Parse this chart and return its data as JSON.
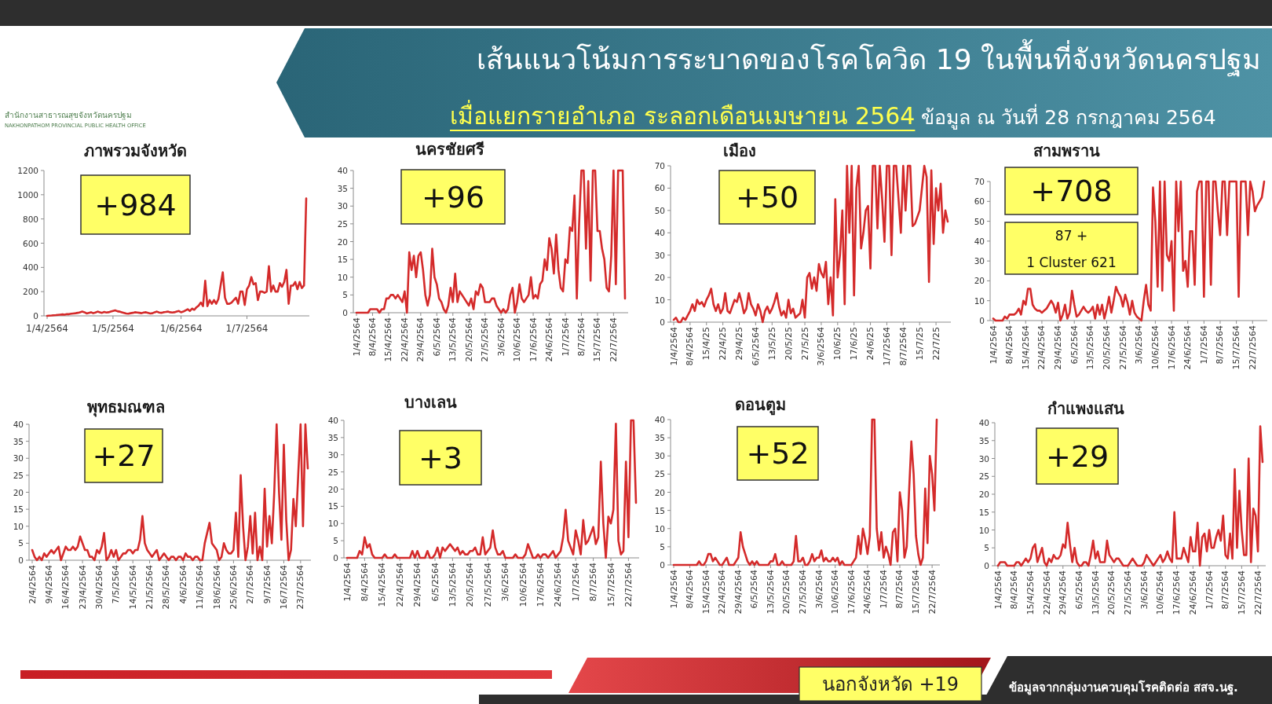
{
  "chart_data": [
    {
      "type": "other",
      "title": "เส้นแนวโน้มการระบาดของโรคโควิด 19 ในพื้นที่จังหวัดนครปฐม",
      "subtitle": "เมื่อแยกรายอำเภอ ระลอกเดือนเมษายน 2564",
      "annotations": [
        "ข้อมูล ณ วันที่ 28 กรกฎาคม 2564",
        "นอกจังหวัด +19",
        "ข้อมูลจากกลุ่มงานควบคุมโรคติดต่อ สสจ.นฐ.",
        "สำนักงานสาธารณสุขจังหวัดนครปฐม",
        "NAKHONPATHOM PROVINCIAL PUBLIC HEALTH OFFICE"
      ]
    },
    {
      "type": "line",
      "title": "ภาพรวมจังหวัด",
      "color": "#d42a2a",
      "ylim": [
        0,
        1200
      ],
      "yticks": [
        0,
        200,
        400,
        600,
        800,
        1000,
        1200
      ],
      "annotations": [
        "+984"
      ],
      "categories": [
        "1/4/2564",
        null,
        null,
        null,
        null,
        null,
        null,
        null,
        null,
        null,
        null,
        null,
        null,
        null,
        null,
        null,
        null,
        null,
        null,
        null,
        null,
        null,
        null,
        null,
        null,
        null,
        null,
        null,
        null,
        null,
        "1/5/2564",
        null,
        null,
        null,
        null,
        null,
        null,
        null,
        null,
        null,
        null,
        null,
        null,
        null,
        null,
        null,
        null,
        null,
        null,
        null,
        null,
        null,
        null,
        null,
        null,
        null,
        null,
        null,
        null,
        null,
        null,
        "1/6/2564",
        null,
        null,
        null,
        null,
        null,
        null,
        null,
        null,
        null,
        null,
        null,
        null,
        null,
        null,
        null,
        null,
        null,
        null,
        null,
        null,
        null,
        null,
        null,
        null,
        null,
        null,
        null,
        null,
        null,
        "1/7/2564",
        null,
        null,
        null,
        null,
        null,
        null,
        null,
        null,
        null,
        null,
        null,
        null,
        null,
        null,
        null,
        null,
        null,
        null,
        null,
        null,
        null,
        null,
        null,
        null,
        null,
        null,
        null
      ],
      "values": [
        0,
        2,
        3,
        5,
        6,
        8,
        10,
        12,
        10,
        15,
        14,
        18,
        20,
        22,
        25,
        30,
        35,
        30,
        20,
        25,
        30,
        22,
        28,
        35,
        30,
        25,
        32,
        28,
        30,
        35,
        40,
        45,
        38,
        35,
        30,
        25,
        20,
        18,
        22,
        25,
        30,
        28,
        25,
        22,
        28,
        30,
        25,
        20,
        22,
        30,
        35,
        28,
        25,
        30,
        32,
        35,
        30,
        28,
        30,
        35,
        40,
        30,
        35,
        45,
        55,
        40,
        60,
        50,
        70,
        85,
        110,
        80,
        290,
        80,
        130,
        100,
        130,
        100,
        140,
        250,
        360,
        150,
        100,
        100,
        110,
        130,
        150,
        100,
        200,
        200,
        90,
        220,
        250,
        320,
        260,
        270,
        130,
        200,
        200,
        190,
        200,
        410,
        200,
        250,
        200,
        200,
        270,
        240,
        280,
        380,
        100,
        250,
        250,
        280,
        220,
        280,
        230,
        250,
        970
      ]
    },
    {
      "type": "line",
      "title": "นครชัยศรี",
      "color": "#d42a2a",
      "ylim": [
        0,
        40
      ],
      "yticks": [
        0,
        5,
        10,
        15,
        20,
        25,
        30,
        35,
        40
      ],
      "annotations": [
        "+96"
      ],
      "categories": [
        "1/4/2564",
        null,
        null,
        null,
        null,
        null,
        null,
        "8/4/2564",
        null,
        null,
        null,
        null,
        null,
        null,
        "15/4/2564",
        null,
        null,
        null,
        null,
        null,
        null,
        "22/4/2564",
        null,
        null,
        null,
        null,
        null,
        null,
        "29/4/2564",
        null,
        null,
        null,
        null,
        null,
        null,
        "6/5/2564",
        null,
        null,
        null,
        null,
        null,
        null,
        "13/5/2564",
        null,
        null,
        null,
        null,
        null,
        null,
        "20/5/2564",
        null,
        null,
        null,
        null,
        null,
        null,
        "27/5/2564",
        null,
        null,
        null,
        null,
        null,
        null,
        "3/6/2564",
        null,
        null,
        null,
        null,
        null,
        null,
        "10/6/2564",
        null,
        null,
        null,
        null,
        null,
        null,
        "17/6/2564",
        null,
        null,
        null,
        null,
        null,
        null,
        "24/6/2564",
        null,
        null,
        null,
        null,
        null,
        null,
        "1/7/2564",
        null,
        null,
        null,
        null,
        null,
        null,
        "8/7/2564",
        null,
        null,
        null,
        null,
        null,
        null,
        "15/7/2564",
        null,
        null,
        null,
        null,
        null,
        null,
        "22/7/2564",
        null,
        null,
        null,
        null,
        null
      ],
      "values": [
        0,
        0,
        0,
        0,
        0,
        0,
        1,
        1,
        1,
        1,
        0,
        1,
        1,
        4,
        4,
        5,
        5,
        4,
        5,
        4,
        3,
        6,
        0,
        17,
        12,
        16,
        10,
        16,
        17,
        12,
        5,
        2,
        5,
        18,
        10,
        8,
        4,
        3,
        1,
        0,
        2,
        7,
        3,
        11,
        3,
        6,
        5,
        4,
        3,
        2,
        4,
        1,
        6,
        5,
        8,
        7,
        3,
        3,
        3,
        4,
        4,
        2,
        1,
        0,
        1,
        0,
        1,
        5,
        7,
        0,
        3,
        8,
        4,
        3,
        4,
        5,
        10,
        4,
        5,
        4,
        8,
        9,
        15,
        12,
        21,
        18,
        11,
        22,
        12,
        7,
        6,
        15,
        14,
        24,
        23,
        33,
        4,
        25,
        40,
        40,
        18,
        37,
        9,
        40,
        40,
        23,
        23,
        18,
        15,
        7,
        6,
        16,
        40,
        8,
        40,
        40,
        40,
        4
      ]
    },
    {
      "type": "line",
      "title": "เมือง",
      "color": "#d42a2a",
      "ylim": [
        0,
        70
      ],
      "yticks": [
        0,
        10,
        20,
        30,
        40,
        50,
        60,
        70
      ],
      "annotations": [
        "+50"
      ],
      "categories": [
        "1/4/2564",
        null,
        null,
        null,
        null,
        null,
        null,
        "8/4/2564",
        null,
        null,
        null,
        null,
        null,
        null,
        "15/4/25",
        null,
        null,
        null,
        null,
        null,
        null,
        "22/4/25",
        null,
        null,
        null,
        null,
        null,
        null,
        "29/4/25",
        null,
        null,
        null,
        null,
        null,
        null,
        "6/5/2564",
        null,
        null,
        null,
        null,
        null,
        null,
        "13/5/25",
        null,
        null,
        null,
        null,
        null,
        null,
        "20/5/25",
        null,
        null,
        null,
        null,
        null,
        null,
        "27/5/25",
        null,
        null,
        null,
        null,
        null,
        null,
        "3/6/2564",
        null,
        null,
        null,
        null,
        null,
        null,
        "10/6/25",
        null,
        null,
        null,
        null,
        null,
        null,
        "17/6/25",
        null,
        null,
        null,
        null,
        null,
        null,
        "24/6/25",
        null,
        null,
        null,
        null,
        null,
        null,
        "1/7/2564",
        null,
        null,
        null,
        null,
        null,
        null,
        "8/7/2564",
        null,
        null,
        null,
        null,
        null,
        null,
        "15/7/25",
        null,
        null,
        null,
        null,
        null,
        null,
        "22/7/25",
        null,
        null,
        null,
        null,
        null
      ],
      "values": [
        1,
        2,
        0,
        0,
        2,
        1,
        3,
        5,
        8,
        5,
        10,
        8,
        9,
        7,
        10,
        12,
        15,
        8,
        5,
        8,
        4,
        6,
        13,
        5,
        4,
        7,
        10,
        9,
        13,
        9,
        4,
        6,
        13,
        8,
        6,
        3,
        8,
        5,
        0,
        5,
        7,
        4,
        6,
        9,
        13,
        7,
        3,
        5,
        2,
        10,
        4,
        6,
        2,
        3,
        4,
        10,
        2,
        20,
        22,
        15,
        20,
        14,
        26,
        22,
        20,
        27,
        8,
        20,
        3,
        55,
        20,
        30,
        50,
        8,
        70,
        40,
        70,
        12,
        60,
        70,
        33,
        40,
        50,
        52,
        24,
        70,
        70,
        42,
        70,
        55,
        36,
        70,
        70,
        30,
        70,
        70,
        55,
        40,
        70,
        50,
        70,
        70,
        43,
        44,
        47,
        50,
        60,
        70,
        65,
        18,
        68,
        35,
        60,
        50,
        62,
        40,
        50,
        45
      ]
    },
    {
      "type": "line",
      "title": "สามพราน",
      "color": "#d42a2a",
      "ylim": [
        0,
        70
      ],
      "yticks": [
        0,
        10,
        20,
        30,
        40,
        50,
        60,
        70
      ],
      "annotations": [
        "+708",
        "87 +\n1 Cluster 621"
      ],
      "categories": [
        "1/4/2564",
        null,
        null,
        null,
        null,
        null,
        null,
        "8/4/2564",
        null,
        null,
        null,
        null,
        null,
        null,
        "15/4/2564",
        null,
        null,
        null,
        null,
        null,
        null,
        "22/4/2564",
        null,
        null,
        null,
        null,
        null,
        null,
        "29/4/2564",
        null,
        null,
        null,
        null,
        null,
        null,
        "6/5/2564",
        null,
        null,
        null,
        null,
        null,
        null,
        "13/5/2564",
        null,
        null,
        null,
        null,
        null,
        null,
        "20/5/2564",
        null,
        null,
        null,
        null,
        null,
        null,
        "27/5/2564",
        null,
        null,
        null,
        null,
        null,
        null,
        "3/6/2564",
        null,
        null,
        null,
        null,
        null,
        null,
        "10/6/2564",
        null,
        null,
        null,
        null,
        null,
        null,
        "17/6/2564",
        null,
        null,
        null,
        null,
        null,
        null,
        "24/6/2564",
        null,
        null,
        null,
        null,
        null,
        null,
        "1/7/2564",
        null,
        null,
        null,
        null,
        null,
        null,
        "8/7/2564",
        null,
        null,
        null,
        null,
        null,
        null,
        "15/7/2564",
        null,
        null,
        null,
        null,
        null,
        null,
        "22/7/2564",
        null,
        null,
        null,
        null,
        null
      ],
      "values": [
        1,
        0,
        0,
        0,
        0,
        2,
        1,
        3,
        3,
        3,
        4,
        6,
        3,
        10,
        8,
        16,
        16,
        8,
        6,
        5,
        5,
        4,
        5,
        6,
        8,
        10,
        8,
        4,
        9,
        0,
        3,
        8,
        1,
        4,
        15,
        8,
        2,
        3,
        5,
        7,
        5,
        4,
        5,
        7,
        1,
        8,
        3,
        8,
        1,
        6,
        12,
        4,
        10,
        17,
        14,
        12,
        7,
        13,
        9,
        3,
        10,
        4,
        2,
        1,
        0,
        10,
        18,
        8,
        5,
        67,
        50,
        17,
        70,
        15,
        70,
        33,
        30,
        40,
        5,
        70,
        45,
        70,
        25,
        30,
        17,
        45,
        45,
        18,
        65,
        70,
        70,
        12,
        70,
        70,
        18,
        70,
        70,
        55,
        43,
        70,
        70,
        43,
        70,
        70,
        70,
        70,
        12,
        70,
        70,
        70,
        43,
        70,
        65,
        55,
        58,
        60,
        62,
        70
      ]
    },
    {
      "type": "line",
      "title": "พุทธมณฑล",
      "color": "#d42a2a",
      "ylim": [
        0,
        40
      ],
      "yticks": [
        0,
        5,
        10,
        15,
        20,
        25,
        30,
        35,
        40
      ],
      "annotations": [
        "+27"
      ],
      "categories": [
        "2/4/2564",
        null,
        null,
        null,
        null,
        null,
        null,
        "9/4/2564",
        null,
        null,
        null,
        null,
        null,
        null,
        "16/4/2564",
        null,
        null,
        null,
        null,
        null,
        null,
        "23/4/2564",
        null,
        null,
        null,
        null,
        null,
        null,
        "30/4/2564",
        null,
        null,
        null,
        null,
        null,
        null,
        "7/5/2564",
        null,
        null,
        null,
        null,
        null,
        null,
        "14/5/2564",
        null,
        null,
        null,
        null,
        null,
        null,
        "21/5/2564",
        null,
        null,
        null,
        null,
        null,
        null,
        "28/5/2564",
        null,
        null,
        null,
        null,
        null,
        null,
        "4/6/2564",
        null,
        null,
        null,
        null,
        null,
        null,
        "11/6/2564",
        null,
        null,
        null,
        null,
        null,
        null,
        "18/6/2564",
        null,
        null,
        null,
        null,
        null,
        null,
        "25/6/2564",
        null,
        null,
        null,
        null,
        null,
        null,
        "2/7/2564",
        null,
        null,
        null,
        null,
        null,
        null,
        "9/7/2564",
        null,
        null,
        null,
        null,
        null,
        null,
        "16/7/2564",
        null,
        null,
        null,
        null,
        null,
        null,
        "23/7/2564",
        null,
        null,
        null
      ],
      "values": [
        3,
        1,
        0,
        1,
        0,
        2,
        1,
        2,
        3,
        2,
        3,
        4,
        0,
        2,
        4,
        3,
        3,
        4,
        3,
        4,
        7,
        5,
        3,
        3,
        1,
        1,
        0,
        3,
        2,
        4,
        8,
        0,
        1,
        3,
        1,
        3,
        0,
        1,
        2,
        2,
        3,
        3,
        2,
        3,
        3,
        6,
        13,
        5,
        3,
        2,
        1,
        2,
        3,
        0,
        1,
        2,
        1,
        0,
        1,
        1,
        0,
        1,
        1,
        0,
        2,
        1,
        1,
        0,
        1,
        1,
        0,
        0,
        5,
        8,
        11,
        5,
        4,
        3,
        0,
        1,
        5,
        3,
        2,
        2,
        3,
        14,
        1,
        25,
        10,
        0,
        4,
        13,
        2,
        14,
        0,
        4,
        0,
        21,
        4,
        13,
        5,
        20,
        40,
        20,
        6,
        34,
        12,
        0,
        3,
        18,
        10,
        25,
        40,
        10,
        40,
        27
      ]
    },
    {
      "type": "line",
      "title": "บางเลน",
      "color": "#d42a2a",
      "ylim": [
        0,
        40
      ],
      "yticks": [
        0,
        5,
        10,
        15,
        20,
        25,
        30,
        35,
        40
      ],
      "annotations": [
        "+3"
      ],
      "categories": [
        "1/4/2564",
        null,
        null,
        null,
        null,
        null,
        null,
        "8/4/2564",
        null,
        null,
        null,
        null,
        null,
        null,
        "15/4/2564",
        null,
        null,
        null,
        null,
        null,
        null,
        "22/4/2564",
        null,
        null,
        null,
        null,
        null,
        null,
        "29/4/2564",
        null,
        null,
        null,
        null,
        null,
        null,
        "6/5/2564",
        null,
        null,
        null,
        null,
        null,
        null,
        "13/5/2564",
        null,
        null,
        null,
        null,
        null,
        null,
        "20/5/2564",
        null,
        null,
        null,
        null,
        null,
        null,
        "27/5/2564",
        null,
        null,
        null,
        null,
        null,
        null,
        "3/6/2564",
        null,
        null,
        null,
        null,
        null,
        null,
        "10/6/2564",
        null,
        null,
        null,
        null,
        null,
        null,
        "17/6/2564",
        null,
        null,
        null,
        null,
        null,
        null,
        "24/6/2564",
        null,
        null,
        null,
        null,
        null,
        null,
        "1/7/2564",
        null,
        null,
        null,
        null,
        null,
        null,
        "8/7/2564",
        null,
        null,
        null,
        null,
        null,
        null,
        "15/7/2564",
        null,
        null,
        null,
        null,
        null,
        null,
        "22/7/2564",
        null,
        null,
        null
      ],
      "values": [
        0,
        0,
        0,
        0,
        0,
        2,
        1,
        6,
        3,
        4,
        1,
        0,
        0,
        0,
        0,
        1,
        0,
        0,
        0,
        1,
        0,
        0,
        0,
        0,
        0,
        0,
        2,
        0,
        2,
        0,
        0,
        0,
        2,
        0,
        0,
        1,
        3,
        0,
        3,
        2,
        3,
        4,
        3,
        2,
        3,
        1,
        2,
        1,
        1,
        2,
        2,
        3,
        1,
        1,
        6,
        1,
        2,
        3,
        8,
        3,
        1,
        1,
        2,
        0,
        0,
        0,
        0,
        1,
        0,
        0,
        0,
        1,
        4,
        2,
        0,
        0,
        1,
        0,
        1,
        1,
        0,
        1,
        2,
        0,
        1,
        2,
        6,
        14,
        5,
        3,
        1,
        8,
        5,
        1,
        11,
        4,
        5,
        7,
        9,
        4,
        6,
        28,
        10,
        0,
        12,
        10,
        14,
        39,
        5,
        1,
        2,
        28,
        6,
        40,
        40,
        16
      ]
    },
    {
      "type": "line",
      "title": "ดอนตูม",
      "color": "#d42a2a",
      "ylim": [
        0,
        40
      ],
      "yticks": [
        0,
        5,
        10,
        15,
        20,
        25,
        30,
        35,
        40
      ],
      "annotations": [
        "+52"
      ],
      "categories": [
        "1/4/2564",
        null,
        null,
        null,
        null,
        null,
        null,
        "8/4/2564",
        null,
        null,
        null,
        null,
        null,
        null,
        "15/4/2564",
        null,
        null,
        null,
        null,
        null,
        null,
        "22/4/2564",
        null,
        null,
        null,
        null,
        null,
        null,
        "29/4/2564",
        null,
        null,
        null,
        null,
        null,
        null,
        "6/5/2564",
        null,
        null,
        null,
        null,
        null,
        null,
        "13/5/2564",
        null,
        null,
        null,
        null,
        null,
        null,
        "20/5/2564",
        null,
        null,
        null,
        null,
        null,
        null,
        "27/5/2564",
        null,
        null,
        null,
        null,
        null,
        null,
        "3/6/2564",
        null,
        null,
        null,
        null,
        null,
        null,
        "10/6/2564",
        null,
        null,
        null,
        null,
        null,
        null,
        "17/6/2564",
        null,
        null,
        null,
        null,
        null,
        null,
        "24/6/2564",
        null,
        null,
        null,
        null,
        null,
        null,
        "1/7/2564",
        null,
        null,
        null,
        null,
        null,
        null,
        "8/7/2564",
        null,
        null,
        null,
        null,
        null,
        null,
        "15/7/2564",
        null,
        null,
        null,
        null,
        null,
        null,
        "22/7/2564",
        null,
        null
      ],
      "values": [
        0,
        0,
        0,
        0,
        0,
        0,
        0,
        0,
        0,
        0,
        0,
        1,
        0,
        0,
        1,
        3,
        3,
        1,
        2,
        1,
        0,
        0,
        1,
        2,
        0,
        0,
        0,
        1,
        2,
        9,
        5,
        3,
        1,
        0,
        1,
        0,
        1,
        0,
        0,
        0,
        0,
        0,
        1,
        1,
        3,
        0,
        0,
        1,
        0,
        0,
        0,
        0,
        1,
        8,
        1,
        1,
        2,
        0,
        0,
        1,
        3,
        1,
        2,
        2,
        4,
        1,
        2,
        1,
        1,
        2,
        1,
        2,
        0,
        1,
        0,
        0,
        0,
        0,
        1,
        2,
        8,
        3,
        10,
        7,
        3,
        8,
        40,
        40,
        10,
        4,
        9,
        2,
        5,
        3,
        0,
        9,
        10,
        1,
        20,
        15,
        2,
        5,
        20,
        34,
        25,
        8,
        3,
        0,
        2,
        21,
        6,
        30,
        25,
        15,
        40
      ]
    },
    {
      "type": "line",
      "title": "กำแพงแสน",
      "color": "#d42a2a",
      "ylim": [
        0,
        40
      ],
      "yticks": [
        0,
        5,
        10,
        15,
        20,
        25,
        30,
        35,
        40
      ],
      "annotations": [
        "+29"
      ],
      "categories": [
        "1/4/2564",
        null,
        null,
        null,
        null,
        null,
        null,
        "8/4/2564",
        null,
        null,
        null,
        null,
        null,
        null,
        "15/4/2564",
        null,
        null,
        null,
        null,
        null,
        null,
        "22/4/2564",
        null,
        null,
        null,
        null,
        null,
        null,
        "29/4/2564",
        null,
        null,
        null,
        null,
        null,
        null,
        "6/5/2564",
        null,
        null,
        null,
        null,
        null,
        null,
        "13/5/2564",
        null,
        null,
        null,
        null,
        null,
        null,
        "20/5/2564",
        null,
        null,
        null,
        null,
        null,
        null,
        "27/5/2564",
        null,
        null,
        null,
        null,
        null,
        null,
        "3/6/2564",
        null,
        null,
        null,
        null,
        null,
        null,
        "10/6/2564",
        null,
        null,
        null,
        null,
        null,
        null,
        "17/6/2564",
        null,
        null,
        null,
        null,
        null,
        null,
        "24/6/2564",
        null,
        null,
        null,
        null,
        null,
        null,
        "1/7/2564",
        null,
        null,
        null,
        null,
        null,
        null,
        "8/7/2564",
        null,
        null,
        null,
        null,
        null,
        null,
        "15/7/2564",
        null,
        null,
        null,
        null,
        null,
        null,
        "22/7/2564",
        null,
        null
      ],
      "values": [
        0,
        1,
        1,
        1,
        0,
        0,
        0,
        0,
        1,
        1,
        0,
        1,
        2,
        1,
        2,
        5,
        6,
        1,
        3,
        5,
        1,
        0,
        2,
        1,
        3,
        2,
        2,
        3,
        6,
        5,
        12,
        6,
        1,
        5,
        1,
        0,
        0,
        1,
        1,
        0,
        3,
        7,
        2,
        4,
        1,
        1,
        1,
        7,
        3,
        2,
        1,
        2,
        2,
        1,
        0,
        0,
        0,
        1,
        2,
        1,
        0,
        0,
        0,
        1,
        3,
        2,
        1,
        0,
        1,
        2,
        3,
        1,
        2,
        4,
        2,
        1,
        15,
        2,
        2,
        2,
        5,
        3,
        1,
        8,
        4,
        4,
        12,
        0,
        8,
        9,
        4,
        10,
        5,
        5,
        8,
        10,
        7,
        14,
        3,
        2,
        9,
        2,
        27,
        5,
        21,
        10,
        3,
        3,
        30,
        1,
        16,
        14,
        4,
        39,
        29
      ]
    }
  ]
}
